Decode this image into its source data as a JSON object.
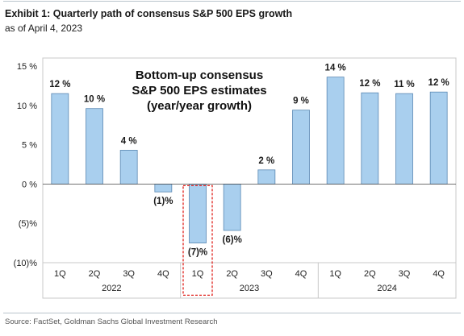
{
  "header": {
    "title": "Exhibit 1: Quarterly path of consensus S&P 500 EPS growth",
    "subtitle": "as of April 4, 2023"
  },
  "footer": {
    "source": "Source: FactSet, Goldman Sachs Global Investment Research"
  },
  "chart_data": {
    "type": "bar",
    "categories": [
      "1Q",
      "2Q",
      "3Q",
      "4Q",
      "1Q",
      "2Q",
      "3Q",
      "4Q",
      "1Q",
      "2Q",
      "3Q",
      "4Q"
    ],
    "groups": [
      {
        "label": "2022",
        "count": 4
      },
      {
        "label": "2023",
        "count": 4
      },
      {
        "label": "2024",
        "count": 4
      }
    ],
    "values": [
      11.5,
      9.6,
      4.3,
      -1.0,
      -7.5,
      -5.9,
      1.8,
      9.4,
      13.6,
      11.6,
      11.5,
      11.7
    ],
    "data_labels": [
      "12 %",
      "10 %",
      "4 %",
      "(1)%",
      "(7)%",
      "(6)%",
      "2 %",
      "9 %",
      "14 %",
      "12 %",
      "11 %",
      "12 %"
    ],
    "ylim": [
      -10,
      15
    ],
    "yticks": [
      15,
      10,
      5,
      0,
      -5,
      -10
    ],
    "ytick_labels": [
      "15 %",
      "10 %",
      "5 %",
      "0 %",
      "(5)%",
      "(10)%"
    ],
    "annotation": [
      "Bottom-up consensus",
      "S&P 500 EPS estimates",
      "(year/year growth)"
    ],
    "highlight_index": 4,
    "colors": {
      "bar_fill": "#a9cfee",
      "bar_stroke": "#5b88b3",
      "highlight": "#e0201b",
      "frame": "#c8c8c8"
    },
    "grid": false
  }
}
